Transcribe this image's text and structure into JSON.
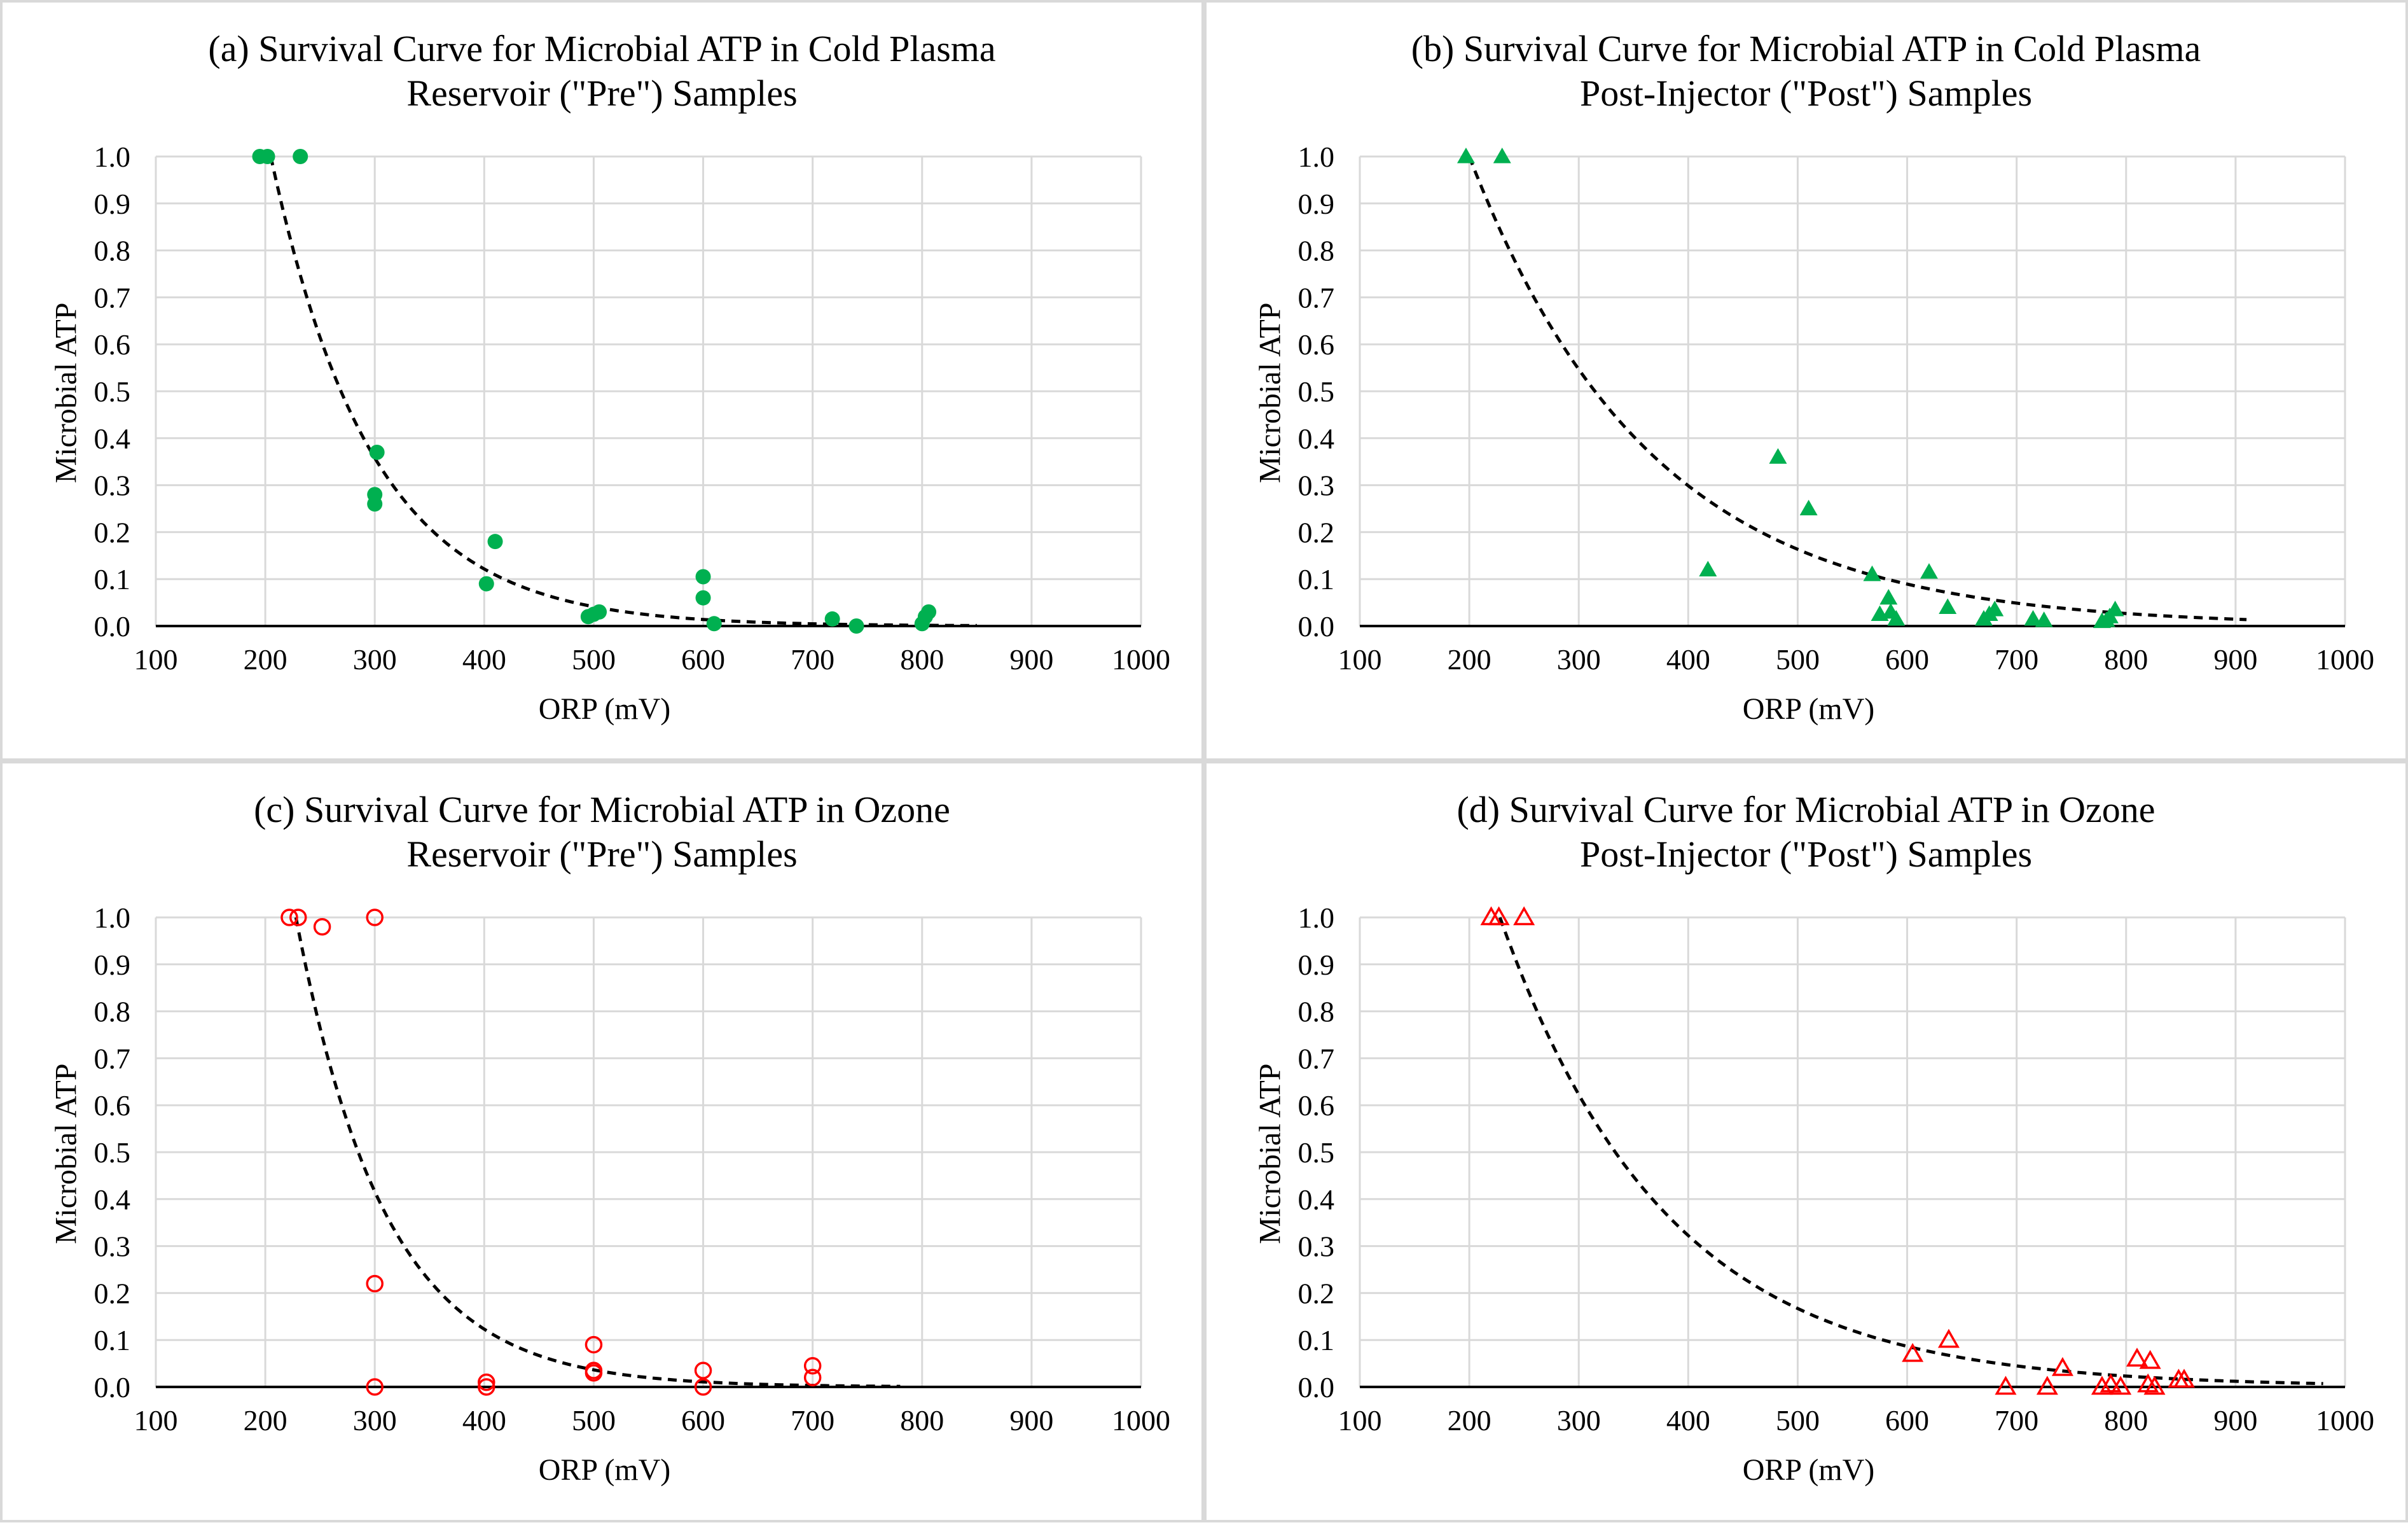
{
  "chart_data": [
    {
      "type": "scatter",
      "title_line1": "(a) Survival Curve for Microbial ATP in Cold Plasma",
      "title_line2": "Reservoir (\"Pre\") Samples",
      "xlabel": "ORP (mV)",
      "ylabel": "Microbial ATP",
      "xlim": [
        100,
        1000
      ],
      "ylim": [
        0,
        1.0
      ],
      "xticks": [
        "100",
        "200",
        "300",
        "400",
        "500",
        "600",
        "700",
        "800",
        "900",
        "1000"
      ],
      "yticks": [
        "0.0",
        "0.1",
        "0.2",
        "0.3",
        "0.4",
        "0.5",
        "0.6",
        "0.7",
        "0.8",
        "0.9",
        "1.0"
      ],
      "grid": true,
      "marker": "filled-circle",
      "color": "#00b050",
      "points": [
        [
          195,
          1.0
        ],
        [
          202,
          1.0
        ],
        [
          232,
          1.0
        ],
        [
          302,
          0.37
        ],
        [
          300,
          0.28
        ],
        [
          300,
          0.26
        ],
        [
          402,
          0.09
        ],
        [
          410,
          0.18
        ],
        [
          495,
          0.02
        ],
        [
          500,
          0.025
        ],
        [
          505,
          0.03
        ],
        [
          600,
          0.105
        ],
        [
          600,
          0.06
        ],
        [
          610,
          0.005
        ],
        [
          718,
          0.015
        ],
        [
          740,
          0.0
        ],
        [
          800,
          0.005
        ],
        [
          803,
          0.02
        ],
        [
          806,
          0.03
        ]
      ],
      "trendline": {
        "style": "dashed",
        "x_range": [
          205,
          850
        ],
        "k": 0.01081
      }
    },
    {
      "type": "scatter",
      "title_line1": "(b) Survival Curve for Microbial ATP in Cold Plasma",
      "title_line2": "Post-Injector (\"Post\") Samples",
      "xlabel": "ORP (mV)",
      "ylabel": "Microbial ATP",
      "xlim": [
        100,
        1000
      ],
      "ylim": [
        0,
        1.0
      ],
      "xticks": [
        "100",
        "200",
        "300",
        "400",
        "500",
        "600",
        "700",
        "800",
        "900",
        "1000"
      ],
      "yticks": [
        "0.0",
        "0.1",
        "0.2",
        "0.3",
        "0.4",
        "0.5",
        "0.6",
        "0.7",
        "0.8",
        "0.9",
        "1.0"
      ],
      "grid": true,
      "marker": "filled-triangle",
      "color": "#00b050",
      "points": [
        [
          197,
          1.0
        ],
        [
          230,
          1.0
        ],
        [
          418,
          0.12
        ],
        [
          482,
          0.36
        ],
        [
          510,
          0.25
        ],
        [
          568,
          0.11
        ],
        [
          575,
          0.025
        ],
        [
          583,
          0.06
        ],
        [
          585,
          0.03
        ],
        [
          590,
          0.015
        ],
        [
          620,
          0.115
        ],
        [
          637,
          0.04
        ],
        [
          670,
          0.015
        ],
        [
          675,
          0.025
        ],
        [
          680,
          0.035
        ],
        [
          715,
          0.015
        ],
        [
          725,
          0.012
        ],
        [
          778,
          0.01
        ],
        [
          782,
          0.012
        ],
        [
          785,
          0.02
        ],
        [
          790,
          0.035
        ]
      ],
      "trendline": {
        "style": "dashed",
        "x_range": [
          200,
          910
        ],
        "k": 0.00604
      }
    },
    {
      "type": "scatter",
      "title_line1": "(c) Survival Curve for Microbial ATP in Ozone",
      "title_line2": "Reservoir (\"Pre\") Samples",
      "xlabel": "ORP (mV)",
      "ylabel": "Microbial ATP",
      "xlim": [
        100,
        1000
      ],
      "ylim": [
        0,
        1.0
      ],
      "xticks": [
        "100",
        "200",
        "300",
        "400",
        "500",
        "600",
        "700",
        "800",
        "900",
        "1000"
      ],
      "yticks": [
        "0.0",
        "0.1",
        "0.2",
        "0.3",
        "0.4",
        "0.5",
        "0.6",
        "0.7",
        "0.8",
        "0.9",
        "1.0"
      ],
      "grid": true,
      "marker": "open-circle",
      "color": "#ff0000",
      "points": [
        [
          222,
          1.0
        ],
        [
          230,
          1.0
        ],
        [
          252,
          0.98
        ],
        [
          300,
          1.0
        ],
        [
          300,
          0.22
        ],
        [
          300,
          0.0
        ],
        [
          402,
          0.01
        ],
        [
          402,
          0.0
        ],
        [
          500,
          0.09
        ],
        [
          500,
          0.035
        ],
        [
          500,
          0.03
        ],
        [
          600,
          0.035
        ],
        [
          600,
          0.0
        ],
        [
          700,
          0.045
        ],
        [
          700,
          0.02
        ]
      ],
      "trendline": {
        "style": "dashed",
        "x_range": [
          228,
          780
        ],
        "k": 0.01218
      }
    },
    {
      "type": "scatter",
      "title_line1": "(d) Survival Curve for Microbial ATP in Ozone",
      "title_line2": "Post-Injector (\"Post\") Samples",
      "xlabel": "ORP (mV)",
      "ylabel": "Microbial ATP",
      "xlim": [
        100,
        1000
      ],
      "ylim": [
        0,
        1.0
      ],
      "xticks": [
        "100",
        "200",
        "300",
        "400",
        "500",
        "600",
        "700",
        "800",
        "900",
        "1000"
      ],
      "yticks": [
        "0.0",
        "0.1",
        "0.2",
        "0.3",
        "0.4",
        "0.5",
        "0.6",
        "0.7",
        "0.8",
        "0.9",
        "1.0"
      ],
      "grid": true,
      "marker": "open-triangle",
      "color": "#ff0000",
      "points": [
        [
          220,
          1.0
        ],
        [
          227,
          1.0
        ],
        [
          250,
          1.0
        ],
        [
          605,
          0.07
        ],
        [
          638,
          0.1
        ],
        [
          690,
          0.0
        ],
        [
          728,
          0.0
        ],
        [
          742,
          0.04
        ],
        [
          778,
          0.0
        ],
        [
          786,
          0.005
        ],
        [
          795,
          0.0
        ],
        [
          810,
          0.06
        ],
        [
          820,
          0.005
        ],
        [
          822,
          0.055
        ],
        [
          826,
          0.0
        ],
        [
          848,
          0.015
        ],
        [
          853,
          0.015
        ]
      ],
      "trendline": {
        "style": "dashed",
        "x_range": [
          228,
          980
        ],
        "k": 0.00658
      }
    }
  ]
}
